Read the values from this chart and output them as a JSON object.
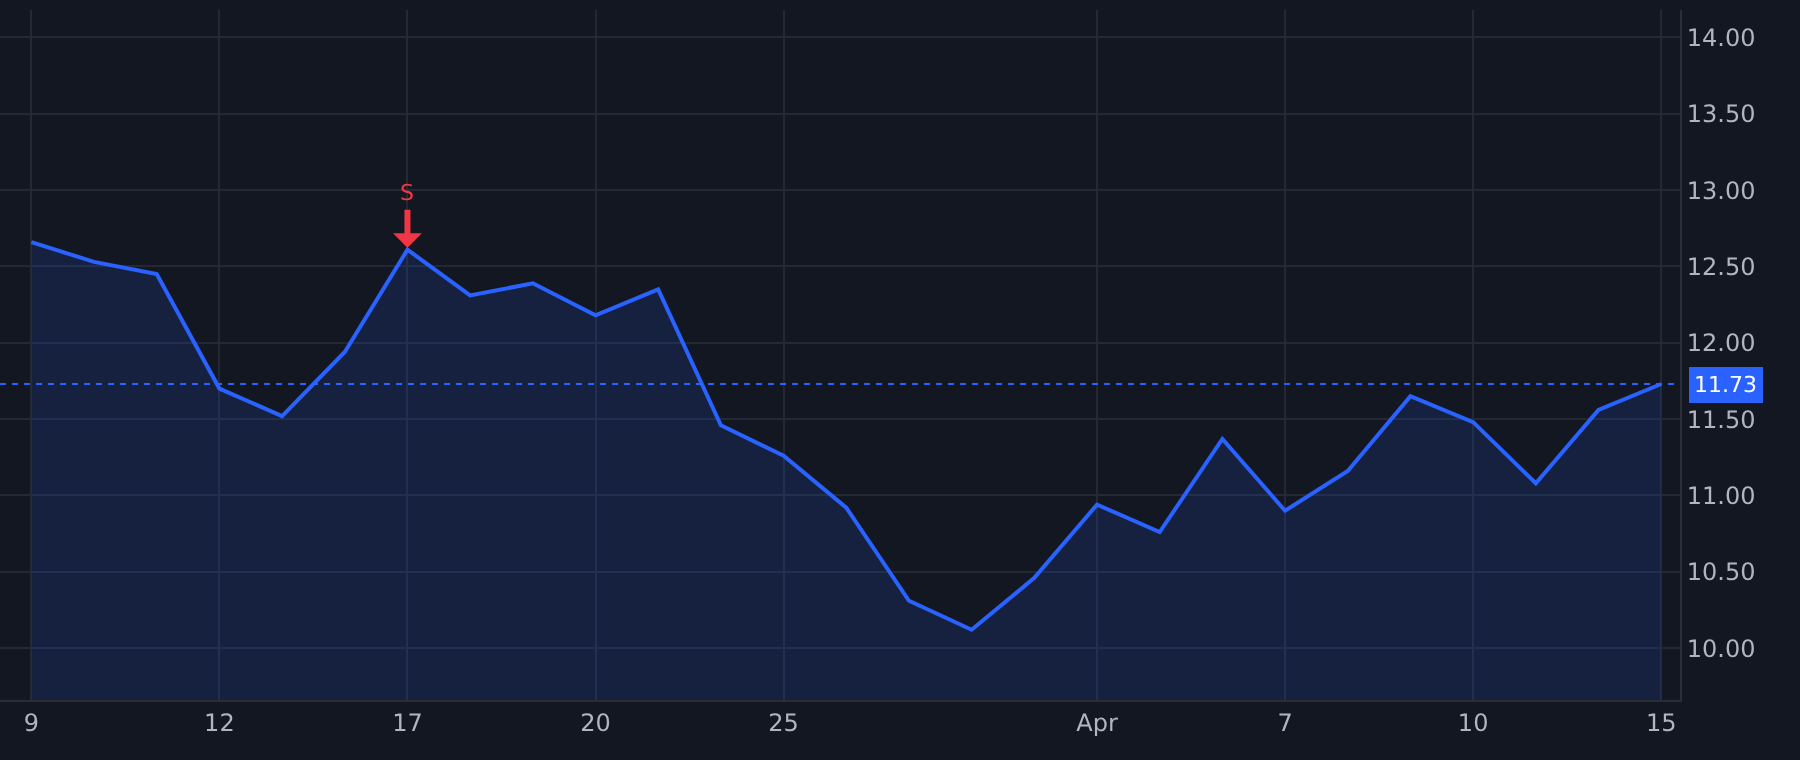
{
  "chart_data": {
    "type": "area",
    "categories": [
      "9",
      null,
      null,
      "12",
      null,
      null,
      "17",
      null,
      null,
      "20",
      null,
      null,
      "25",
      null,
      null,
      null,
      null,
      "Apr",
      null,
      null,
      "7",
      null,
      null,
      "10",
      null,
      null,
      "15"
    ],
    "series": [
      {
        "color": "#2962ff",
        "values": [
          12.66,
          12.53,
          12.45,
          11.7,
          11.52,
          11.94,
          12.61,
          12.31,
          12.39,
          12.18,
          12.35,
          11.46,
          11.26,
          10.92,
          10.31,
          10.12,
          10.46,
          10.94,
          10.76,
          11.37,
          10.9,
          11.16,
          11.65,
          11.48,
          11.08,
          11.56,
          11.73
        ]
      }
    ],
    "ylim": [
      9.66,
      14.18
    ],
    "yticks": [
      {
        "value": 10,
        "label": "10.00"
      },
      {
        "value": 10.5,
        "label": "10.50"
      },
      {
        "value": 11,
        "label": "11.00"
      },
      {
        "value": 11.5,
        "label": "11.50"
      },
      {
        "value": 12,
        "label": "12.00"
      },
      {
        "value": 12.5,
        "label": "12.50"
      },
      {
        "value": 13,
        "label": "13.00"
      },
      {
        "value": 13.5,
        "label": "13.50"
      },
      {
        "value": 14,
        "label": "14.00"
      }
    ],
    "ref_lines": [
      {
        "axis": "y",
        "value": 11.73,
        "label": "11.73",
        "color": "#2962ff",
        "line_style": "dotted"
      }
    ],
    "annotations": [
      {
        "text": "S",
        "x": "17",
        "y": 12.61
      }
    ],
    "grid": true
  }
}
